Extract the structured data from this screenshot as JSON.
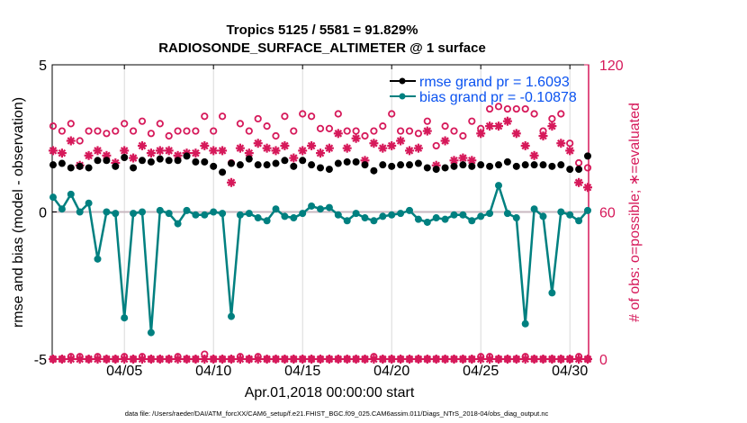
{
  "chart_data": {
    "type": "line",
    "title": "Tropics 5125 / 5581 = 91.829%",
    "subtitle": "RADIOSONDE_SURFACE_ALTIMETER @ 1 surface",
    "xlabel": "Apr.01,2018 00:00:00 start",
    "ylabel": "rmse and bias (model - observation)",
    "ylabel_right": "# of obs: o=possible; ∗=evaluated",
    "footnote": "data file: /Users/raeder/DAI/ATM_forcXX/CAM6_setup/f.e21.FHIST_BGC.f09_025.CAM6assim.011/Diags_NTrS_2018-04/obs_diag_output.nc",
    "xlim_days": [
      0,
      30
    ],
    "ylim": [
      -5,
      5
    ],
    "ylim_right": [
      0,
      120
    ],
    "x_ticks": [
      {
        "day": 4,
        "label": "04/05"
      },
      {
        "day": 9,
        "label": "04/10"
      },
      {
        "day": 14,
        "label": "04/15"
      },
      {
        "day": 19,
        "label": "04/20"
      },
      {
        "day": 24,
        "label": "04/25"
      },
      {
        "day": 29,
        "label": "04/30"
      }
    ],
    "y_ticks": [
      {
        "value": -5,
        "label": "-5"
      },
      {
        "value": 0,
        "label": "0"
      },
      {
        "value": 5,
        "label": "5"
      }
    ],
    "y_ticks_right": [
      {
        "value": 0,
        "label": "0"
      },
      {
        "value": 60,
        "label": "60"
      },
      {
        "value": 120,
        "label": "120"
      }
    ],
    "grid": "vertical",
    "zero_line": true,
    "legend": {
      "position": "top-right",
      "entries": [
        {
          "label": "rmse grand pr = 1.6093",
          "series": "rmse"
        },
        {
          "label": "bias grand pr = -0.10878",
          "series": "bias"
        }
      ]
    },
    "colors": {
      "rmse": "#000000",
      "bias": "#008080",
      "obs": "#d6195a",
      "legend_text": "#0a52f0",
      "zero_line": "#c8b8c0",
      "grid": "#d9d9d9"
    },
    "x_days": [
      0,
      0.5,
      1,
      1.5,
      2,
      2.5,
      3,
      3.5,
      4,
      4.5,
      5,
      5.5,
      6,
      6.5,
      7,
      7.5,
      8,
      8.5,
      9,
      9.5,
      10,
      10.5,
      11,
      11.5,
      12,
      12.5,
      13,
      13.5,
      14,
      14.5,
      15,
      15.5,
      16,
      16.5,
      17,
      17.5,
      18,
      18.5,
      19,
      19.5,
      20,
      20.5,
      21,
      21.5,
      22,
      22.5,
      23,
      23.5,
      24,
      24.5,
      25,
      25.5,
      26,
      26.5,
      27,
      27.5,
      28,
      28.5,
      29,
      29.5,
      30
    ],
    "series": [
      {
        "name": "rmse",
        "values": [
          1.6,
          1.65,
          1.5,
          1.55,
          1.5,
          1.75,
          1.75,
          1.55,
          1.85,
          1.5,
          1.75,
          1.7,
          1.8,
          1.75,
          1.75,
          1.9,
          1.7,
          1.7,
          1.55,
          1.35,
          1.65,
          1.6,
          1.8,
          1.6,
          1.6,
          1.65,
          1.75,
          1.55,
          1.75,
          1.6,
          1.5,
          1.45,
          1.65,
          1.7,
          1.7,
          1.6,
          1.4,
          1.6,
          1.55,
          1.6,
          1.6,
          1.65,
          1.5,
          1.45,
          1.5,
          1.55,
          1.6,
          1.55,
          1.6,
          1.55,
          1.6,
          1.7,
          1.55,
          1.6,
          1.6,
          1.6,
          1.55,
          1.6,
          1.45,
          1.45,
          1.9
        ]
      },
      {
        "name": "bias",
        "values": [
          0.5,
          0.1,
          0.6,
          0.0,
          0.3,
          -1.6,
          0.0,
          -0.05,
          -3.6,
          -0.05,
          0.0,
          -4.1,
          0.05,
          -0.05,
          -0.4,
          0.05,
          -0.1,
          -0.1,
          0.0,
          -0.05,
          -3.55,
          -0.1,
          -0.05,
          -0.2,
          -0.3,
          0.1,
          -0.15,
          -0.2,
          -0.05,
          0.2,
          0.1,
          0.15,
          -0.1,
          -0.3,
          -0.05,
          -0.2,
          -0.3,
          -0.15,
          -0.1,
          -0.05,
          0.05,
          -0.25,
          -0.35,
          -0.2,
          -0.25,
          -0.1,
          -0.1,
          -0.3,
          -0.15,
          -0.05,
          0.9,
          -0.05,
          -0.2,
          -3.8,
          0.1,
          -0.15,
          -2.75,
          0.0,
          -0.1,
          -0.3,
          0.05
        ]
      },
      {
        "name": "obs_possible",
        "axis": "right",
        "values": [
          95,
          93,
          96,
          89,
          93,
          93,
          92,
          93,
          96,
          93,
          97,
          92,
          96,
          91,
          93,
          93,
          93,
          99,
          93,
          99,
          80,
          96,
          93,
          98,
          95,
          91,
          99,
          93,
          100,
          99,
          94,
          94,
          100,
          93,
          93,
          91,
          93,
          95,
          100,
          93,
          93,
          92,
          97,
          87,
          95,
          93,
          91,
          97,
          94,
          102,
          103,
          102,
          102,
          102,
          100,
          93,
          98,
          100,
          88,
          80,
          78
        ]
      },
      {
        "name": "obs_evaluated",
        "axis": "right",
        "values": [
          85,
          84,
          89,
          79,
          83,
          85,
          83,
          80,
          85,
          82,
          87,
          84,
          85,
          85,
          83,
          84,
          84,
          87,
          85,
          85,
          72,
          86,
          84,
          88,
          86,
          85,
          87,
          82,
          85,
          87,
          84,
          86,
          92,
          86,
          90,
          81,
          88,
          86,
          87,
          89,
          85,
          86,
          93,
          79,
          89,
          81,
          82,
          81,
          92,
          95,
          95,
          97,
          92,
          87,
          83,
          91,
          95,
          88,
          85,
          72,
          70
        ]
      },
      {
        "name": "obs_possible_zero",
        "axis": "right",
        "values": [
          0,
          0,
          1,
          1,
          0,
          1,
          0,
          0,
          1,
          0,
          1,
          0,
          0,
          0,
          1,
          0,
          0,
          2,
          0,
          0,
          0,
          1,
          0,
          1,
          0,
          0,
          0,
          0,
          0,
          0,
          0,
          0,
          0,
          0,
          0,
          0,
          1,
          0,
          0,
          0,
          0,
          0,
          0,
          0,
          0,
          0,
          0,
          0,
          1,
          1,
          0,
          0,
          0,
          1,
          0,
          0,
          0,
          0,
          0,
          1,
          0
        ]
      },
      {
        "name": "obs_evaluated_zero",
        "axis": "right",
        "values": [
          0,
          0,
          0,
          0,
          0,
          0,
          0,
          0,
          0,
          0,
          0,
          0,
          0,
          0,
          0,
          0,
          0,
          0,
          0,
          0,
          0,
          0,
          0,
          0,
          0,
          0,
          0,
          0,
          0,
          0,
          0,
          0,
          0,
          0,
          0,
          0,
          0,
          0,
          0,
          0,
          0,
          0,
          0,
          0,
          0,
          0,
          0,
          0,
          0,
          0,
          0,
          0,
          0,
          0,
          0,
          0,
          0,
          0,
          0,
          0,
          0
        ]
      }
    ]
  }
}
